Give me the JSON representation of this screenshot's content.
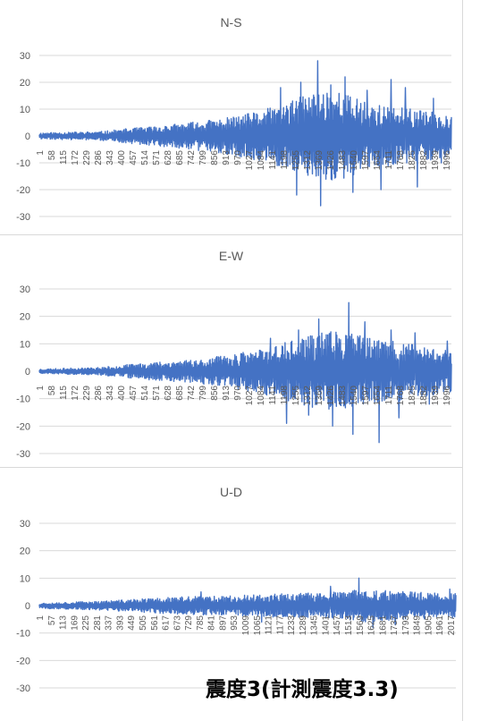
{
  "caption": "震度3(計測震度3.3)",
  "colors": {
    "series": "#4472c4",
    "grid": "#d9d9d9",
    "text": "#595959"
  },
  "chart_data": [
    {
      "type": "line",
      "title": "N-S",
      "ylim": [
        -30,
        30
      ],
      "yticks": [
        30,
        20,
        10,
        0,
        -10,
        -20,
        -30
      ],
      "xticks": [
        "1",
        "58",
        "115",
        "172",
        "229",
        "286",
        "343",
        "400",
        "457",
        "514",
        "571",
        "628",
        "685",
        "742",
        "799",
        "856",
        "913",
        "970",
        "1027",
        "1084",
        "1141",
        "1198",
        "1255",
        "1312",
        "1369",
        "1426",
        "1483",
        "1540",
        "1597",
        "1654",
        "1711",
        "1768",
        "1825",
        "1882",
        "1939",
        "1996"
      ],
      "x_max": 2050,
      "grid": true,
      "envelope": [
        [
          0,
          1.2
        ],
        [
          300,
          1.6
        ],
        [
          450,
          2.8
        ],
        [
          600,
          3.8
        ],
        [
          800,
          5.5
        ],
        [
          950,
          7
        ],
        [
          1050,
          8.5
        ],
        [
          1150,
          10.5
        ],
        [
          1250,
          13
        ],
        [
          1350,
          16
        ],
        [
          1450,
          18
        ],
        [
          1550,
          15
        ],
        [
          1650,
          12
        ],
        [
          1750,
          11
        ],
        [
          1850,
          10
        ],
        [
          1950,
          9
        ],
        [
          2050,
          8
        ]
      ],
      "peaks": [
        [
          1200,
          18
        ],
        [
          1280,
          -22
        ],
        [
          1300,
          20
        ],
        [
          1385,
          28
        ],
        [
          1400,
          -26
        ],
        [
          1450,
          19
        ],
        [
          1520,
          22
        ],
        [
          1560,
          -21
        ],
        [
          1630,
          17
        ],
        [
          1700,
          -20
        ],
        [
          1750,
          21
        ],
        [
          1820,
          18
        ],
        [
          1880,
          -19
        ],
        [
          1960,
          14
        ],
        [
          2000,
          -10
        ],
        [
          2030,
          6
        ]
      ]
    },
    {
      "type": "line",
      "title": "E-W",
      "ylim": [
        -30,
        30
      ],
      "yticks": [
        30,
        20,
        10,
        0,
        -10,
        -20,
        -30
      ],
      "xticks": [
        "1",
        "58",
        "115",
        "172",
        "229",
        "286",
        "343",
        "400",
        "457",
        "514",
        "571",
        "628",
        "685",
        "742",
        "799",
        "856",
        "913",
        "970",
        "1027",
        "1084",
        "1141",
        "1198",
        "1255",
        "1312",
        "1369",
        "1426",
        "1483",
        "1540",
        "1597",
        "1654",
        "1711",
        "1768",
        "1825",
        "1882",
        "1939",
        "1996"
      ],
      "x_max": 2050,
      "grid": true,
      "envelope": [
        [
          0,
          0.8
        ],
        [
          300,
          1.4
        ],
        [
          450,
          2.5
        ],
        [
          600,
          3.5
        ],
        [
          800,
          4.5
        ],
        [
          950,
          6
        ],
        [
          1050,
          7.5
        ],
        [
          1150,
          9
        ],
        [
          1250,
          11
        ],
        [
          1350,
          13
        ],
        [
          1450,
          15
        ],
        [
          1550,
          14
        ],
        [
          1650,
          12
        ],
        [
          1750,
          11
        ],
        [
          1850,
          10
        ],
        [
          1950,
          9
        ],
        [
          2050,
          8
        ]
      ],
      "peaks": [
        [
          1150,
          12
        ],
        [
          1230,
          -19
        ],
        [
          1290,
          15
        ],
        [
          1340,
          -16
        ],
        [
          1390,
          19
        ],
        [
          1460,
          -20
        ],
        [
          1540,
          25
        ],
        [
          1560,
          -23
        ],
        [
          1620,
          18
        ],
        [
          1690,
          -26
        ],
        [
          1750,
          15
        ],
        [
          1790,
          -17
        ],
        [
          1870,
          14
        ],
        [
          1940,
          -12
        ],
        [
          2030,
          11
        ]
      ]
    },
    {
      "type": "line",
      "title": "U-D",
      "ylim": [
        -30,
        30
      ],
      "yticks": [
        30,
        20,
        10,
        0,
        -10,
        -20,
        -30
      ],
      "xticks": [
        "1",
        "57",
        "113",
        "169",
        "225",
        "281",
        "337",
        "393",
        "449",
        "505",
        "561",
        "617",
        "673",
        "729",
        "785",
        "841",
        "897",
        "953",
        "1009",
        "1065",
        "1121",
        "1177",
        "1233",
        "1289",
        "1345",
        "1401",
        "1457",
        "1513",
        "1569",
        "1625",
        "1681",
        "1737",
        "1793",
        "1849",
        "1905",
        "1961",
        "2017"
      ],
      "x_max": 2060,
      "grid": true,
      "envelope": [
        [
          0,
          1
        ],
        [
          300,
          1.6
        ],
        [
          500,
          2.4
        ],
        [
          700,
          3.2
        ],
        [
          900,
          3.6
        ],
        [
          1100,
          4
        ],
        [
          1300,
          4.5
        ],
        [
          1500,
          5
        ],
        [
          1600,
          6
        ],
        [
          1700,
          5.5
        ],
        [
          1850,
          5
        ],
        [
          2060,
          4.5
        ]
      ],
      "peaks": [
        [
          1580,
          10
        ],
        [
          1650,
          -8
        ],
        [
          1440,
          7
        ],
        [
          1760,
          -7
        ],
        [
          2030,
          6
        ],
        [
          800,
          5
        ],
        [
          1100,
          -6
        ]
      ]
    }
  ]
}
